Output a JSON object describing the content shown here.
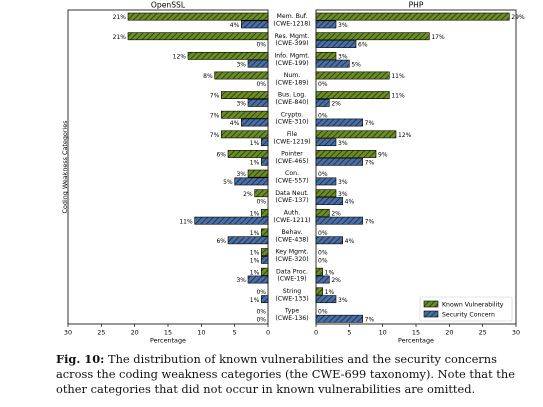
{
  "chart_data": {
    "type": "bar",
    "ylabel": "Coding Weakness Categories",
    "panels": [
      {
        "title": "OpenSSL",
        "xlabel": "Percentage",
        "xlim": [
          0,
          30
        ],
        "xticks": [
          30,
          25,
          20,
          15,
          10,
          5,
          0
        ],
        "direction": "left"
      },
      {
        "title": "PHP",
        "xlabel": "Percentage",
        "xlim": [
          0,
          30
        ],
        "xticks": [
          0,
          5,
          10,
          15,
          20,
          25,
          30
        ],
        "direction": "right"
      }
    ],
    "categories": [
      [
        "Mem. Buf.",
        "(CWE-1218)"
      ],
      [
        "Res. Mgmt.",
        "(CWE-399)"
      ],
      [
        "Info. Mgmt.",
        "(CWE-199)"
      ],
      [
        "Num.",
        "(CWE-189)"
      ],
      [
        "Bus. Log.",
        "(CWE-840)"
      ],
      [
        "Crypto.",
        "(CWE-310)"
      ],
      [
        "File",
        "(CWE-1219)"
      ],
      [
        "Pointer",
        "(CWE-465)"
      ],
      [
        "Con.",
        "(CWE-557)"
      ],
      [
        "Data Neut.",
        "(CWE-137)"
      ],
      [
        "Auth.",
        "(CWE-1211)"
      ],
      [
        "Behav.",
        "(CWE-438)"
      ],
      [
        "Key Mgmt.",
        "(CWE-320)"
      ],
      [
        "Data Proc.",
        "(CWE-19)"
      ],
      [
        "String",
        "(CWE-133)"
      ],
      [
        "Type",
        "(CWE-136)"
      ]
    ],
    "series": [
      {
        "name": "Known Vulnerability",
        "color": "#6b8e23",
        "pattern": "diagonal-hatch",
        "openssl": [
          21,
          21,
          12,
          8,
          7,
          7,
          7,
          6,
          3,
          2,
          1,
          1,
          1,
          1,
          0,
          0
        ],
        "php": [
          29,
          17,
          3,
          11,
          11,
          0,
          12,
          9,
          0,
          3,
          2,
          0,
          0,
          1,
          1,
          0
        ]
      },
      {
        "name": "Security Concern",
        "color": "#4a6fa5",
        "pattern": "diagonal-hatch",
        "openssl": [
          4,
          0,
          3,
          0,
          3,
          4,
          1,
          1,
          5,
          0,
          11,
          6,
          1,
          3,
          1,
          0
        ],
        "php": [
          3,
          6,
          5,
          0,
          2,
          7,
          3,
          7,
          3,
          4,
          7,
          4,
          0,
          2,
          3,
          7
        ]
      }
    ],
    "value_suffix": "%",
    "legend": "bottom-right"
  },
  "caption": {
    "label": "Fig. 10:",
    "text": "The distribution of known vulnerabilities and the security concerns across the coding weakness categories (the CWE-699 taxonomy). Note that the other categories that did not occur in known vulnerabilities are omitted."
  }
}
